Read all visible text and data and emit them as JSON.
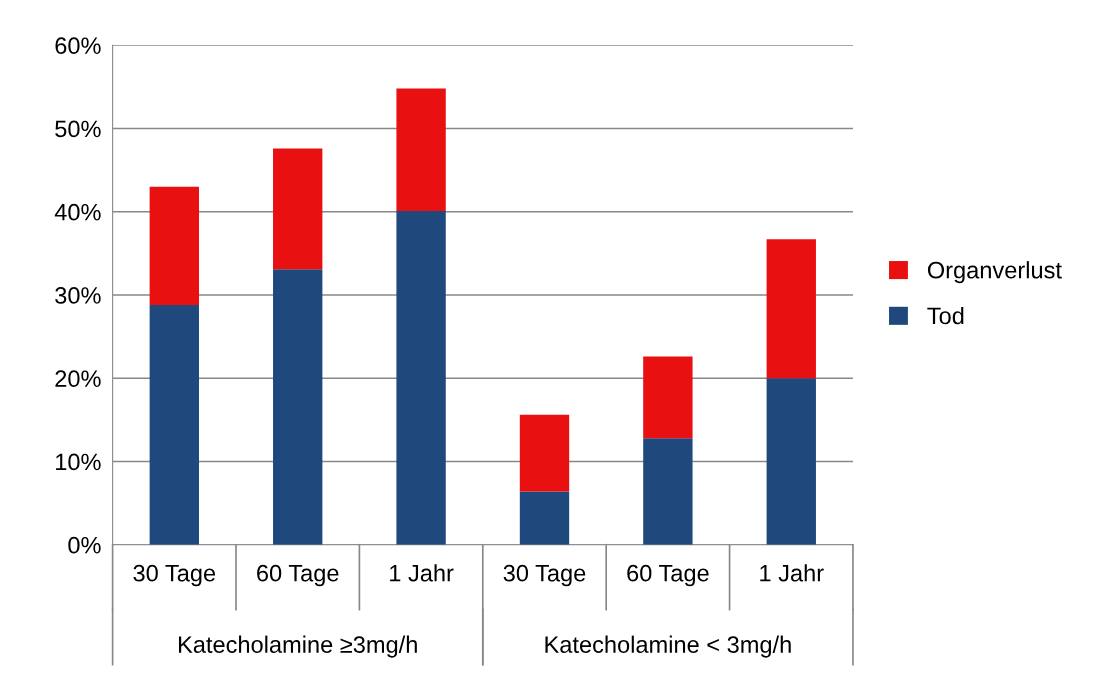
{
  "chart_data": {
    "type": "bar",
    "stacked": true,
    "categories": [
      "30 Tage",
      "60 Tage",
      "1 Jahr",
      "30 Tage",
      "60 Tage",
      "1 Jahr"
    ],
    "series": [
      {
        "name": "Tod",
        "color": "#1f497d",
        "values": [
          28.8,
          33.1,
          40.1,
          6.4,
          12.8,
          20.0
        ]
      },
      {
        "name": "Organverlust",
        "color": "#e81010",
        "values": [
          14.2,
          14.5,
          14.7,
          9.2,
          9.8,
          16.7
        ]
      }
    ],
    "ylim": [
      0,
      60
    ],
    "yticks": [
      {
        "value": 0,
        "label": "0%"
      },
      {
        "value": 10,
        "label": "10%"
      },
      {
        "value": 20,
        "label": "20%"
      },
      {
        "value": 30,
        "label": "30%"
      },
      {
        "value": 40,
        "label": "40%"
      },
      {
        "value": 50,
        "label": "50%"
      },
      {
        "value": 60,
        "label": "60%"
      }
    ],
    "annotations": [
      "Katecholamine ≥3mg/h",
      "Katecholamine < 3mg/h"
    ],
    "grid": "y",
    "legend": "right"
  }
}
